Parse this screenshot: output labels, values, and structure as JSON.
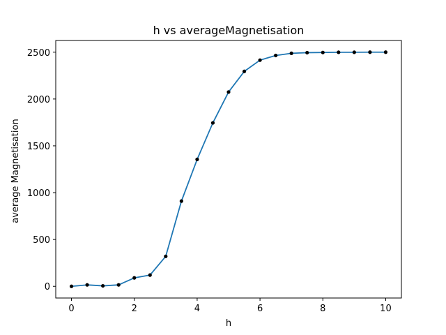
{
  "chart_data": {
    "type": "line",
    "title": "h vs averageMagnetisation",
    "xlabel": "h",
    "ylabel": "average Magnetisation",
    "xlim": [
      -0.5,
      10.5
    ],
    "ylim": [
      -125,
      2625
    ],
    "xticks": [
      0,
      2,
      4,
      6,
      8,
      10
    ],
    "yticks": [
      0,
      500,
      1000,
      1500,
      2000,
      2500
    ],
    "grid": false,
    "legend": "none",
    "series": [
      {
        "color": "#1f77b4",
        "marker_color": "#000000",
        "x": [
          0,
          0.5,
          1,
          1.5,
          2,
          2.5,
          3,
          3.5,
          4,
          4.5,
          5,
          5.5,
          6,
          6.5,
          7,
          7.5,
          8,
          8.5,
          9,
          9.5,
          10
        ],
        "values": [
          0,
          15,
          5,
          15,
          90,
          120,
          320,
          910,
          1355,
          1745,
          2075,
          2295,
          2415,
          2465,
          2488,
          2495,
          2497,
          2499,
          2499,
          2500,
          2500
        ]
      }
    ]
  }
}
